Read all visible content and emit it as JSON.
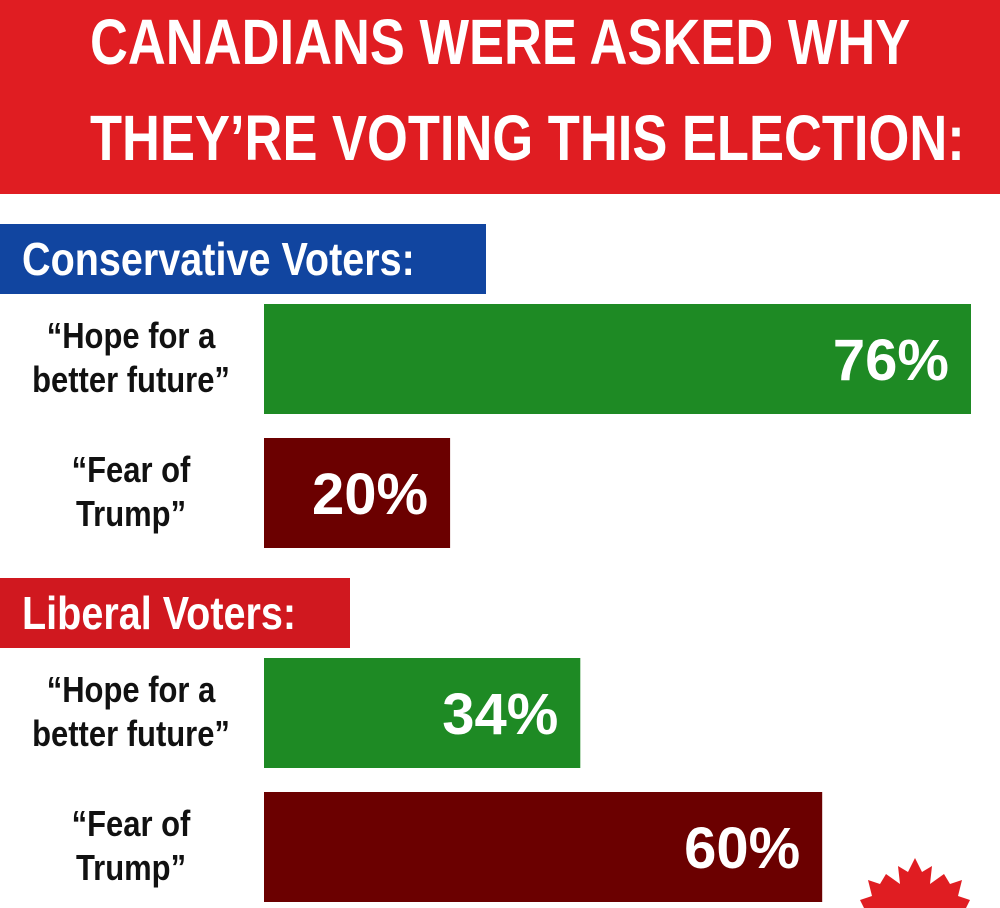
{
  "title": {
    "line1": "CANADIANS WERE ASKED WHY",
    "line2": "THEY’RE VOTING THIS ELECTION:"
  },
  "colors": {
    "banner": "#e01d22",
    "conservative_label": "#1145a0",
    "liberal_label": "#d0181f",
    "hope_bar": "#1e8a24",
    "fear_bar": "#6b0000",
    "maple_leaf": "#e01d22"
  },
  "sections": [
    {
      "label": "Conservative Voters:"
    },
    {
      "label": "Liberal Voters:"
    }
  ],
  "rows": [
    {
      "line1": "“Hope for a",
      "line2": "better future”"
    },
    {
      "line1": "“Fear of",
      "line2": "Trump”"
    },
    {
      "line1": "“Hope for a",
      "line2": "better future”"
    },
    {
      "line1": "“Fear of",
      "line2": "Trump”"
    }
  ],
  "decor": {
    "corner_icon": "maple-leaf-icon"
  },
  "chart_data": {
    "type": "bar",
    "orientation": "horizontal",
    "title": "CANADIANS WERE ASKED WHY THEY’RE VOTING THIS ELECTION:",
    "xlim": [
      0,
      100
    ],
    "unit": "%",
    "grid": false,
    "groups": [
      {
        "name": "Conservative Voters:",
        "bars": [
          {
            "category": "“Hope for a better future”",
            "value": 76,
            "label": "76%",
            "color": "#1e8a24"
          },
          {
            "category": "“Fear of Trump”",
            "value": 20,
            "label": "20%",
            "color": "#6b0000"
          }
        ]
      },
      {
        "name": "Liberal Voters:",
        "bars": [
          {
            "category": "“Hope for a better future”",
            "value": 34,
            "label": "34%",
            "color": "#1e8a24"
          },
          {
            "category": "“Fear of Trump”",
            "value": 60,
            "label": "60%",
            "color": "#6b0000"
          }
        ]
      }
    ]
  }
}
